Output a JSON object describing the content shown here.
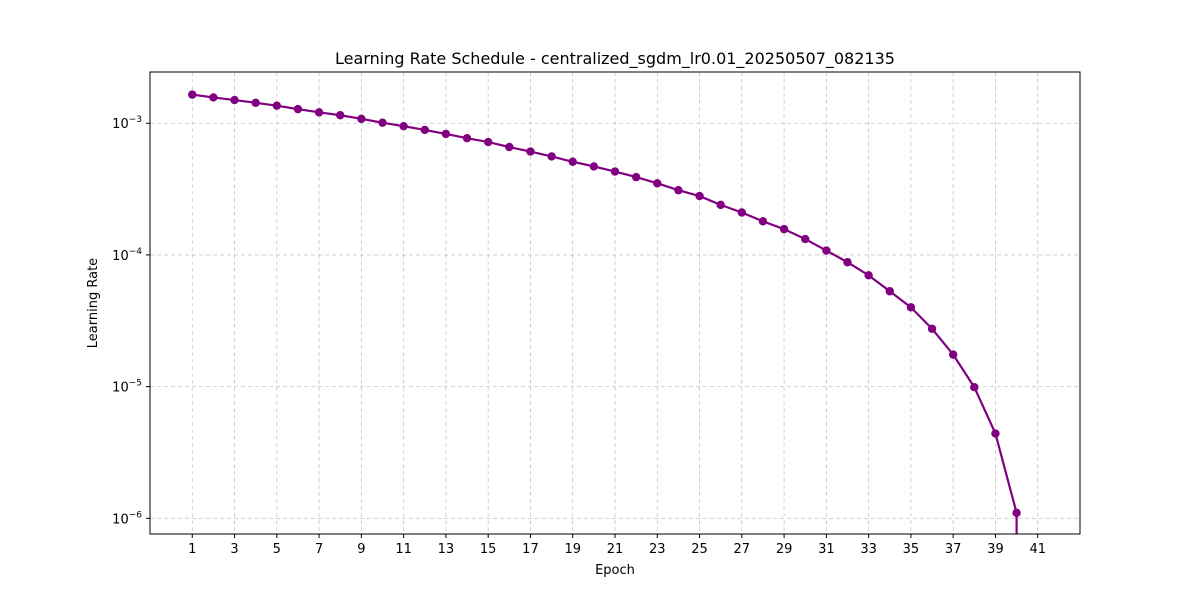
{
  "chart_data": {
    "type": "line",
    "title": "Learning Rate Schedule - centralized_sgdm_lr0.01_20250507_082135",
    "xlabel": "Epoch",
    "ylabel": "Learning Rate",
    "x_ticks": [
      1,
      3,
      5,
      7,
      9,
      11,
      13,
      15,
      17,
      19,
      21,
      23,
      25,
      27,
      29,
      31,
      33,
      35,
      37,
      39,
      41
    ],
    "x_tick_labels": [
      "1",
      "3",
      "5",
      "7",
      "9",
      "11",
      "13",
      "15",
      "17",
      "19",
      "21",
      "23",
      "25",
      "27",
      "29",
      "31",
      "33",
      "35",
      "37",
      "39",
      "41"
    ],
    "y_scale": "log",
    "y_ticks": [
      1e-06,
      1e-05,
      0.0001,
      0.001
    ],
    "y_tick_labels": [
      {
        "base": "10",
        "exp": "−6"
      },
      {
        "base": "10",
        "exp": "−5"
      },
      {
        "base": "10",
        "exp": "−4"
      },
      {
        "base": "10",
        "exp": "−3"
      }
    ],
    "xlim": [
      -1,
      43
    ],
    "ylim": [
      7.6e-07,
      0.00245
    ],
    "grid": true,
    "series": [
      {
        "color": "#800080",
        "marker": "circle",
        "x": [
          1,
          2,
          3,
          4,
          5,
          6,
          7,
          8,
          9,
          10,
          11,
          12,
          13,
          14,
          15,
          16,
          17,
          18,
          19,
          20,
          21,
          22,
          23,
          24,
          25,
          26,
          27,
          28,
          29,
          30,
          31,
          32,
          33,
          34,
          35,
          36,
          37,
          38,
          39,
          40
        ],
        "values": [
          0.00165,
          0.00157,
          0.0015,
          0.00143,
          0.00136,
          0.00128,
          0.00121,
          0.00115,
          0.00108,
          0.00101,
          0.00095,
          0.00089,
          0.00083,
          0.00077,
          0.00072,
          0.00066,
          0.00061,
          0.00056,
          0.00051,
          0.00047,
          0.00043,
          0.00039,
          0.00035,
          0.00031,
          0.00028,
          0.00024,
          0.00021,
          0.00018,
          0.000157,
          0.000132,
          0.000108,
          8.8e-05,
          7e-05,
          5.3e-05,
          4e-05,
          2.75e-05,
          1.75e-05,
          9.9e-06,
          4.4e-06,
          1.1e-06
        ]
      }
    ]
  }
}
